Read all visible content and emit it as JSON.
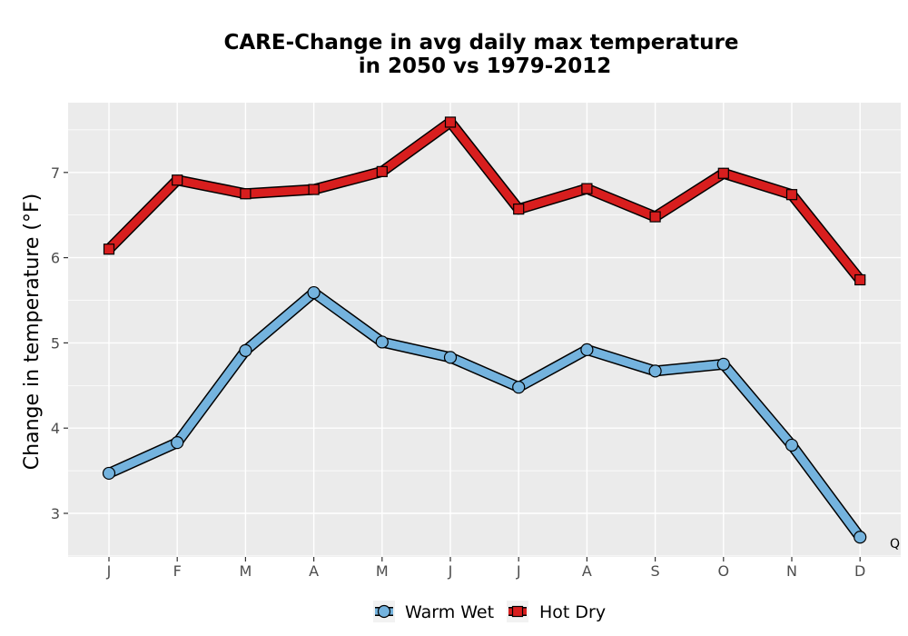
{
  "chart_data": {
    "type": "line",
    "title_line1": "CARE-Change in avg daily max temperature",
    "title_line2": "in 2050 vs 1979-2012",
    "xlabel": "",
    "ylabel": "Change in temperature (°F)",
    "categories": [
      "J",
      "F",
      "M",
      "A",
      "M",
      "J",
      "J",
      "A",
      "S",
      "O",
      "N",
      "D"
    ],
    "yticks": [
      3,
      4,
      5,
      6,
      7
    ],
    "ylim": [
      2.5,
      7.8
    ],
    "grid": true,
    "legend_position": "bottom",
    "series": [
      {
        "name": "Warm Wet",
        "marker": "circle",
        "color": "#74b3de",
        "values": [
          3.47,
          3.83,
          4.91,
          5.59,
          5.01,
          4.83,
          4.48,
          4.92,
          4.67,
          4.75,
          3.8,
          2.72
        ]
      },
      {
        "name": "Hot Dry",
        "marker": "square",
        "color": "#d81e1e",
        "values": [
          6.1,
          6.91,
          6.75,
          6.8,
          7.01,
          7.59,
          6.57,
          6.81,
          6.48,
          6.99,
          6.74,
          5.74
        ]
      }
    ],
    "annotation": "Q"
  }
}
